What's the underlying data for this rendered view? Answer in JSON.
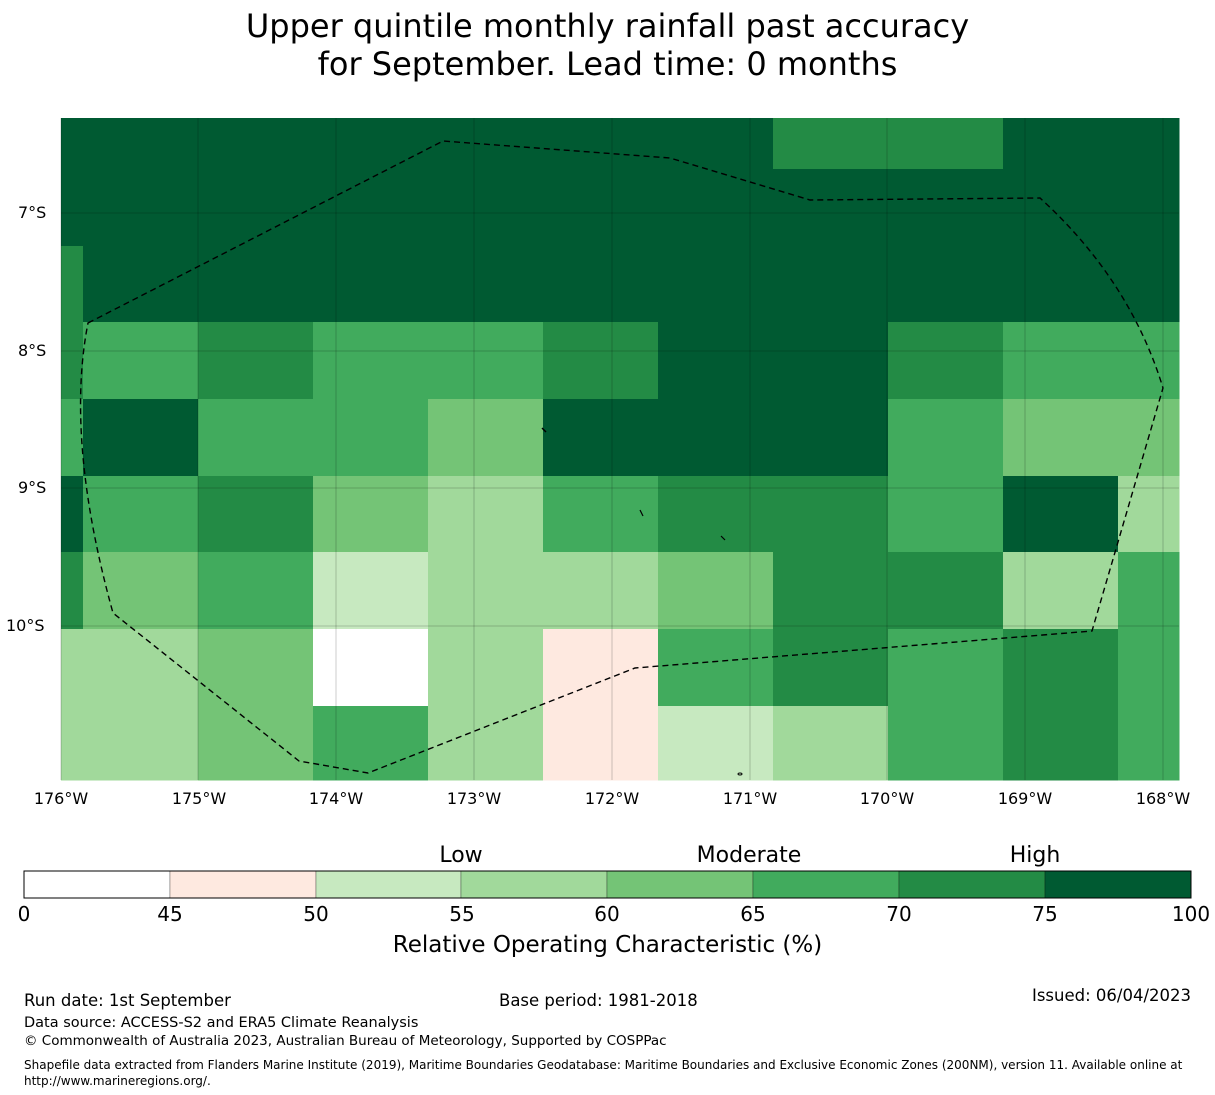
{
  "title": {
    "line1": "Upper quintile monthly rainfall past accuracy",
    "line2": "for September. Lead time: 0 months"
  },
  "map": {
    "lat_labels": [
      "7°S",
      "8°S",
      "9°S",
      "10°S"
    ],
    "lon_labels": [
      "176°W",
      "175°W",
      "174°W",
      "173°W",
      "172°W",
      "171°W",
      "170°W",
      "169°W",
      "168°W"
    ],
    "columns": [
      0,
      1,
      2,
      3,
      4,
      5,
      6,
      7,
      8,
      9,
      10
    ],
    "grid_classes": [
      [
        7,
        7,
        7,
        7,
        7,
        7,
        7,
        6,
        6,
        7,
        7
      ],
      [
        7,
        7,
        7,
        7,
        7,
        7,
        7,
        7,
        7,
        7,
        7
      ],
      [
        6,
        7,
        7,
        7,
        7,
        7,
        7,
        7,
        7,
        7,
        7
      ],
      [
        6,
        5,
        6,
        5,
        5,
        6,
        7,
        7,
        6,
        5,
        5
      ],
      [
        5,
        7,
        5,
        5,
        4,
        7,
        7,
        7,
        5,
        4,
        4
      ],
      [
        7,
        5,
        6,
        4,
        3,
        5,
        6,
        6,
        5,
        7,
        3
      ],
      [
        6,
        4,
        5,
        2,
        3,
        3,
        4,
        6,
        6,
        3,
        5
      ],
      [
        3,
        3,
        4,
        0,
        3,
        1,
        5,
        6,
        5,
        6,
        5
      ],
      [
        3,
        3,
        4,
        5,
        3,
        1,
        2,
        3,
        5,
        6,
        5
      ]
    ],
    "colors": [
      "#ffffff",
      "#fee9e0",
      "#c7e9c0",
      "#a1d99b",
      "#74c476",
      "#41ab5d",
      "#238b45",
      "#005a32"
    ]
  },
  "colorbar": {
    "ticks": [
      "0",
      "45",
      "50",
      "55",
      "60",
      "65",
      "70",
      "75",
      "100"
    ],
    "categories": [
      "Low",
      "Moderate",
      "High"
    ],
    "title": "Relative Operating Characteristic (%)"
  },
  "footer": {
    "run_date": "Run date: 1st September",
    "base_period": "Base period: 1981-2018",
    "issued": "Issued: 06/04/2023",
    "data_source": "Data source: ACCESS-S2 and ERA5 Climate Reanalysis",
    "copyright": "© Commonwealth of Australia 2023, Australian Bureau of Meteorology, Supported by COSPPac",
    "shapefile_line1": "Shapefile data extracted from Flanders Marine Institute (2019), Maritime Boundaries Geodatabase: Maritime Boundaries and Exclusive Economic Zones (200NM), version 11. Available online at",
    "shapefile_line2": "http://www.marineregions.org/."
  }
}
